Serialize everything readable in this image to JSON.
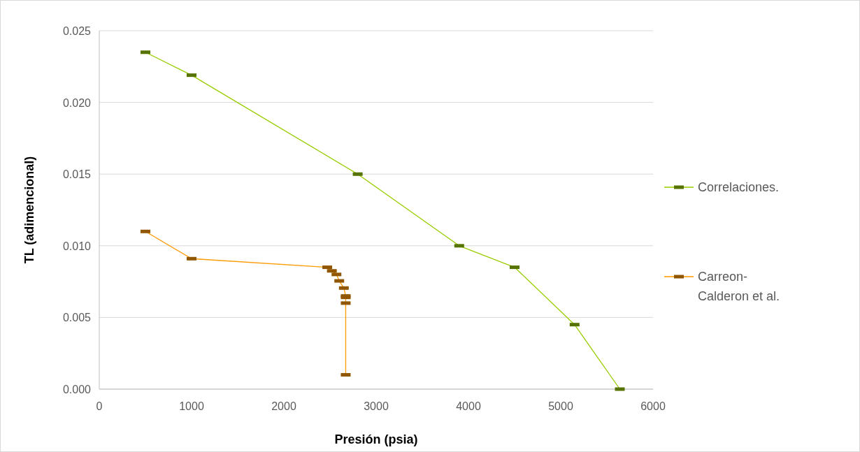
{
  "chart_data": {
    "type": "line",
    "xlabel": "Presión (psia)",
    "ylabel": "TL (adimencional)",
    "xlim": [
      0,
      6000
    ],
    "xticks": [
      0,
      1000,
      2000,
      3000,
      4000,
      5000,
      6000
    ],
    "ylim": [
      0,
      0.025
    ],
    "yticks": [
      {
        "value": 0,
        "label": "0.000"
      },
      {
        "value": 0.005,
        "label": "0.005"
      },
      {
        "value": 0.01,
        "label": "0.010"
      },
      {
        "value": 0.015,
        "label": "0.015"
      },
      {
        "value": 0.02,
        "label": "0.020"
      },
      {
        "value": 0.025,
        "label": "0.025"
      }
    ],
    "grid": "y",
    "legend": "right",
    "marker": "square",
    "line_style": "solid",
    "series": [
      {
        "name": "Correlaciones.",
        "color": "#99cc00",
        "x": [
          500,
          1000,
          2800,
          3900,
          4500,
          5150,
          5640
        ],
        "values": [
          0.0235,
          0.0219,
          0.015,
          0.01,
          0.0085,
          0.0045,
          0
        ]
      },
      {
        "name": "Carreon-Calderon et al.",
        "color": "#ff9900",
        "x": [
          500,
          1000,
          2470,
          2520,
          2570,
          2600,
          2650,
          2670,
          2670,
          2670,
          2670
        ],
        "values": [
          0.011,
          0.0091,
          0.0085,
          0.00825,
          0.008,
          0.00755,
          0.00705,
          0.0065,
          0.0064,
          0.006,
          0.001
        ]
      }
    ]
  }
}
